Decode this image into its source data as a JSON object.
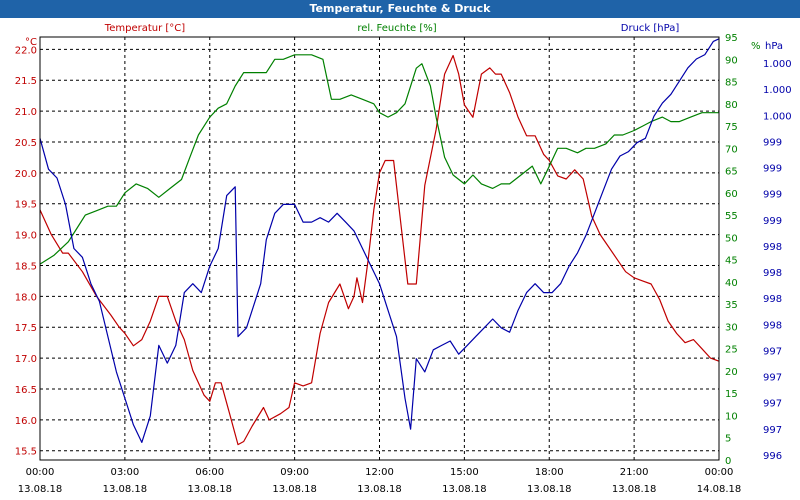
{
  "title": "Temperatur, Feuchte & Druck",
  "chart_data": {
    "type": "line",
    "title": "Temperatur, Feuchte & Druck",
    "colors": {
      "temperature": "#c00000",
      "humidity": "#008000",
      "pressure": "#0000aa",
      "title_bar": "#1f63a8",
      "grid": "#000000"
    },
    "x_ticks": [
      {
        "time": "00:00",
        "date": "13.08.18"
      },
      {
        "time": "03:00",
        "date": "13.08.18"
      },
      {
        "time": "06:00",
        "date": "13.08.18"
      },
      {
        "time": "09:00",
        "date": "13.08.18"
      },
      {
        "time": "12:00",
        "date": "13.08.18"
      },
      {
        "time": "15:00",
        "date": "13.08.18"
      },
      {
        "time": "18:00",
        "date": "13.08.18"
      },
      {
        "time": "21:00",
        "date": "13.08.18"
      },
      {
        "time": "00:00",
        "date": "14.08.18"
      }
    ],
    "xlim_hours": [
      0,
      24
    ],
    "axes": {
      "temperature": {
        "label": "Temperatur [°C]",
        "unit": "°C",
        "ylim": [
          15.35,
          22.2
        ],
        "ticks": [
          "22.0",
          "21.5",
          "21.0",
          "20.5",
          "20.0",
          "19.5",
          "19.0",
          "18.5",
          "18.0",
          "17.5",
          "17.0",
          "16.5",
          "16.0",
          "15.5"
        ]
      },
      "humidity": {
        "label": "rel. Feuchte [%]",
        "unit": "%",
        "ylim": [
          0,
          95
        ],
        "ticks": [
          "95",
          "90",
          "85",
          "80",
          "75",
          "70",
          "65",
          "60",
          "55",
          "50",
          "45",
          "40",
          "35",
          "30",
          "25",
          "20",
          "15",
          "10",
          "5",
          "0"
        ]
      },
      "pressure": {
        "label": "Druck [hPa]",
        "unit": "hPa",
        "ylim": [
          996.0,
          1000.8
        ],
        "ticks": [
          "1.000",
          "1.000",
          "1.000",
          "999",
          "999",
          "999",
          "999",
          "998",
          "998",
          "998",
          "998",
          "997",
          "997",
          "997",
          "997",
          "996"
        ]
      }
    },
    "series": [
      {
        "name": "Temperatur",
        "axis": "temperature",
        "color": "#c00000",
        "points": [
          [
            0,
            19.4
          ],
          [
            0.4,
            19.0
          ],
          [
            0.8,
            18.7
          ],
          [
            1.0,
            18.7
          ],
          [
            1.5,
            18.4
          ],
          [
            2.0,
            18.0
          ],
          [
            2.5,
            17.7
          ],
          [
            2.8,
            17.5
          ],
          [
            3.0,
            17.4
          ],
          [
            3.3,
            17.2
          ],
          [
            3.6,
            17.3
          ],
          [
            3.9,
            17.6
          ],
          [
            4.2,
            18.0
          ],
          [
            4.5,
            18.0
          ],
          [
            4.8,
            17.6
          ],
          [
            5.1,
            17.3
          ],
          [
            5.4,
            16.8
          ],
          [
            5.8,
            16.4
          ],
          [
            6.0,
            16.3
          ],
          [
            6.2,
            16.6
          ],
          [
            6.4,
            16.6
          ],
          [
            6.7,
            16.1
          ],
          [
            7.0,
            15.6
          ],
          [
            7.2,
            15.65
          ],
          [
            7.5,
            15.9
          ],
          [
            7.9,
            16.2
          ],
          [
            8.1,
            16.0
          ],
          [
            8.5,
            16.1
          ],
          [
            8.8,
            16.2
          ],
          [
            9.0,
            16.6
          ],
          [
            9.3,
            16.55
          ],
          [
            9.6,
            16.6
          ],
          [
            9.9,
            17.4
          ],
          [
            10.2,
            17.9
          ],
          [
            10.6,
            18.2
          ],
          [
            10.9,
            17.8
          ],
          [
            11.1,
            18.0
          ],
          [
            11.2,
            18.3
          ],
          [
            11.4,
            17.9
          ],
          [
            11.6,
            18.6
          ],
          [
            11.8,
            19.4
          ],
          [
            12.0,
            20.0
          ],
          [
            12.2,
            20.2
          ],
          [
            12.5,
            20.2
          ],
          [
            12.8,
            19.0
          ],
          [
            13.0,
            18.2
          ],
          [
            13.3,
            18.2
          ],
          [
            13.6,
            19.8
          ],
          [
            14.0,
            20.7
          ],
          [
            14.3,
            21.6
          ],
          [
            14.6,
            21.9
          ],
          [
            14.8,
            21.6
          ],
          [
            15.0,
            21.1
          ],
          [
            15.3,
            20.9
          ],
          [
            15.6,
            21.6
          ],
          [
            15.9,
            21.7
          ],
          [
            16.1,
            21.6
          ],
          [
            16.3,
            21.6
          ],
          [
            16.6,
            21.3
          ],
          [
            16.9,
            20.9
          ],
          [
            17.2,
            20.6
          ],
          [
            17.5,
            20.6
          ],
          [
            17.8,
            20.3
          ],
          [
            18.0,
            20.2
          ],
          [
            18.3,
            19.95
          ],
          [
            18.6,
            19.9
          ],
          [
            18.9,
            20.05
          ],
          [
            19.2,
            19.9
          ],
          [
            19.5,
            19.3
          ],
          [
            19.8,
            19.0
          ],
          [
            20.1,
            18.8
          ],
          [
            20.4,
            18.6
          ],
          [
            20.7,
            18.4
          ],
          [
            21.0,
            18.3
          ],
          [
            21.3,
            18.25
          ],
          [
            21.6,
            18.2
          ],
          [
            21.9,
            17.95
          ],
          [
            22.2,
            17.6
          ],
          [
            22.5,
            17.4
          ],
          [
            22.8,
            17.25
          ],
          [
            23.1,
            17.3
          ],
          [
            23.4,
            17.15
          ],
          [
            23.7,
            17.0
          ],
          [
            24.0,
            16.95
          ]
        ]
      },
      {
        "name": "rel. Feuchte",
        "axis": "humidity",
        "color": "#008000",
        "points": [
          [
            0,
            44
          ],
          [
            0.5,
            46
          ],
          [
            1.0,
            49
          ],
          [
            1.3,
            52
          ],
          [
            1.6,
            55
          ],
          [
            2.0,
            56
          ],
          [
            2.4,
            57
          ],
          [
            2.7,
            57
          ],
          [
            3.0,
            60
          ],
          [
            3.4,
            62
          ],
          [
            3.8,
            61
          ],
          [
            4.2,
            59
          ],
          [
            4.6,
            61
          ],
          [
            5.0,
            63
          ],
          [
            5.3,
            68
          ],
          [
            5.6,
            73
          ],
          [
            6.0,
            77
          ],
          [
            6.3,
            79
          ],
          [
            6.6,
            80
          ],
          [
            6.9,
            84
          ],
          [
            7.2,
            87
          ],
          [
            7.6,
            87
          ],
          [
            8.0,
            87
          ],
          [
            8.3,
            90
          ],
          [
            8.6,
            90
          ],
          [
            9.0,
            91
          ],
          [
            9.3,
            91
          ],
          [
            9.6,
            91
          ],
          [
            10.0,
            90
          ],
          [
            10.3,
            81
          ],
          [
            10.6,
            81
          ],
          [
            11.0,
            82
          ],
          [
            11.4,
            81
          ],
          [
            11.8,
            80
          ],
          [
            12.0,
            78
          ],
          [
            12.3,
            77
          ],
          [
            12.6,
            78
          ],
          [
            12.9,
            80
          ],
          [
            13.3,
            88
          ],
          [
            13.5,
            89
          ],
          [
            13.8,
            84
          ],
          [
            14.0,
            77
          ],
          [
            14.3,
            68
          ],
          [
            14.6,
            64
          ],
          [
            15.0,
            62
          ],
          [
            15.3,
            64
          ],
          [
            15.6,
            62
          ],
          [
            16.0,
            61
          ],
          [
            16.3,
            62
          ],
          [
            16.6,
            62
          ],
          [
            17.0,
            64
          ],
          [
            17.4,
            66
          ],
          [
            17.7,
            62
          ],
          [
            18.0,
            66
          ],
          [
            18.3,
            70
          ],
          [
            18.6,
            70
          ],
          [
            19.0,
            69
          ],
          [
            19.3,
            70
          ],
          [
            19.6,
            70
          ],
          [
            20.0,
            71
          ],
          [
            20.3,
            73
          ],
          [
            20.6,
            73
          ],
          [
            21.0,
            74
          ],
          [
            21.3,
            75
          ],
          [
            21.6,
            76
          ],
          [
            22.0,
            77
          ],
          [
            22.3,
            76
          ],
          [
            22.6,
            76
          ],
          [
            23.0,
            77
          ],
          [
            23.4,
            78
          ],
          [
            23.8,
            78
          ],
          [
            24.0,
            78
          ]
        ]
      },
      {
        "name": "Druck",
        "axis": "pressure",
        "color": "#0000aa",
        "points": [
          [
            0,
            999.65
          ],
          [
            0.3,
            999.3
          ],
          [
            0.6,
            999.2
          ],
          [
            0.9,
            998.9
          ],
          [
            1.2,
            998.4
          ],
          [
            1.5,
            998.3
          ],
          [
            1.8,
            998.0
          ],
          [
            2.1,
            997.8
          ],
          [
            2.4,
            997.4
          ],
          [
            2.7,
            997.0
          ],
          [
            3.0,
            996.7
          ],
          [
            3.3,
            996.4
          ],
          [
            3.6,
            996.2
          ],
          [
            3.9,
            996.5
          ],
          [
            4.2,
            997.3
          ],
          [
            4.5,
            997.1
          ],
          [
            4.8,
            997.3
          ],
          [
            5.1,
            997.9
          ],
          [
            5.4,
            998.0
          ],
          [
            5.7,
            997.9
          ],
          [
            6.0,
            998.2
          ],
          [
            6.3,
            998.4
          ],
          [
            6.6,
            999.0
          ],
          [
            6.9,
            999.1
          ],
          [
            7.0,
            997.4
          ],
          [
            7.3,
            997.5
          ],
          [
            7.6,
            997.8
          ],
          [
            7.8,
            998.0
          ],
          [
            8.0,
            998.5
          ],
          [
            8.3,
            998.8
          ],
          [
            8.6,
            998.9
          ],
          [
            9.0,
            998.9
          ],
          [
            9.3,
            998.7
          ],
          [
            9.6,
            998.7
          ],
          [
            9.9,
            998.75
          ],
          [
            10.2,
            998.7
          ],
          [
            10.5,
            998.8
          ],
          [
            10.8,
            998.7
          ],
          [
            11.1,
            998.6
          ],
          [
            11.4,
            998.4
          ],
          [
            11.7,
            998.2
          ],
          [
            12.0,
            998.0
          ],
          [
            12.3,
            997.7
          ],
          [
            12.6,
            997.4
          ],
          [
            12.9,
            996.7
          ],
          [
            13.1,
            996.35
          ],
          [
            13.3,
            997.15
          ],
          [
            13.6,
            997.0
          ],
          [
            13.9,
            997.25
          ],
          [
            14.2,
            997.3
          ],
          [
            14.5,
            997.35
          ],
          [
            14.8,
            997.2
          ],
          [
            15.1,
            997.3
          ],
          [
            15.4,
            997.4
          ],
          [
            15.7,
            997.5
          ],
          [
            16.0,
            997.6
          ],
          [
            16.3,
            997.5
          ],
          [
            16.6,
            997.45
          ],
          [
            16.9,
            997.7
          ],
          [
            17.2,
            997.9
          ],
          [
            17.5,
            998.0
          ],
          [
            17.8,
            997.9
          ],
          [
            18.1,
            997.9
          ],
          [
            18.4,
            998.0
          ],
          [
            18.7,
            998.2
          ],
          [
            19.0,
            998.35
          ],
          [
            19.3,
            998.55
          ],
          [
            19.6,
            998.8
          ],
          [
            19.9,
            999.05
          ],
          [
            20.2,
            999.3
          ],
          [
            20.5,
            999.45
          ],
          [
            20.8,
            999.5
          ],
          [
            21.1,
            999.6
          ],
          [
            21.4,
            999.65
          ],
          [
            21.7,
            999.9
          ],
          [
            22.0,
            1000.05
          ],
          [
            22.3,
            1000.15
          ],
          [
            22.6,
            1000.3
          ],
          [
            22.9,
            1000.45
          ],
          [
            23.2,
            1000.55
          ],
          [
            23.5,
            1000.6
          ],
          [
            23.8,
            1000.75
          ],
          [
            24.0,
            1000.78
          ]
        ]
      }
    ]
  }
}
